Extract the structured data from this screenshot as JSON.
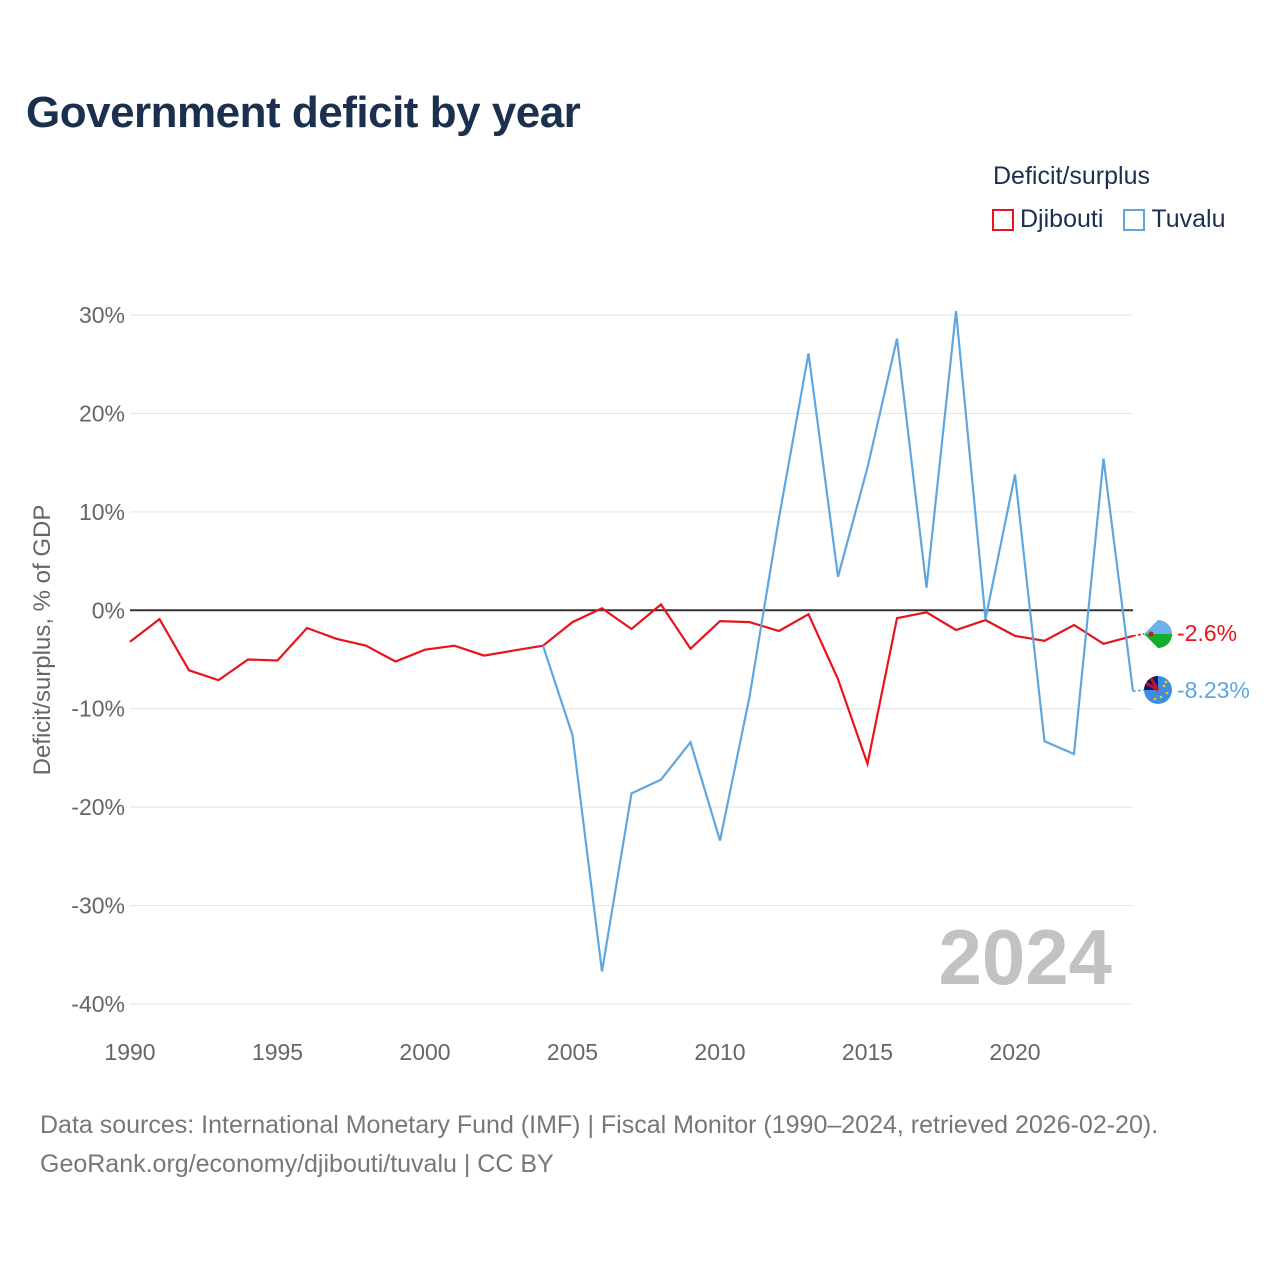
{
  "title": "Government deficit by year",
  "legend": {
    "title": "Deficit/surplus",
    "items": [
      {
        "label": "Djibouti",
        "color": "#e8131b"
      },
      {
        "label": "Tuvalu",
        "color": "#5fa6e0"
      }
    ]
  },
  "footer": {
    "line1": "Data sources: International Monetary Fund (IMF) | Fiscal Monitor (1990–2024, retrieved 2026-02-20).",
    "line2": "GeoRank.org/economy/djibouti/tuvalu | CC BY"
  },
  "chart_data": {
    "type": "line",
    "title": "Government deficit by year",
    "ylabel": "Deficit/surplus, % of GDP",
    "xlabel": "",
    "xlim": [
      1990,
      2024
    ],
    "ylim": [
      -40,
      30
    ],
    "x_ticks": [
      1990,
      1995,
      2000,
      2005,
      2010,
      2015,
      2020
    ],
    "x_tick_labels": [
      "1990",
      "1995",
      "2000",
      "2005",
      "2010",
      "2015",
      "2020"
    ],
    "y_ticks": [
      30,
      20,
      10,
      0,
      -10,
      -20,
      -30,
      -40
    ],
    "y_tick_labels": [
      "30%",
      "20%",
      "10%",
      "0%",
      "-10%",
      "-20%",
      "-30%",
      "-40%"
    ],
    "year_label": "2024",
    "series": [
      {
        "name": "Djibouti",
        "color": "#e8131b",
        "end_label": "-2.6%",
        "x": [
          1990,
          1991,
          1992,
          1993,
          1994,
          1995,
          1996,
          1997,
          1998,
          1999,
          2000,
          2001,
          2002,
          2003,
          2004,
          2005,
          2006,
          2007,
          2008,
          2009,
          2010,
          2011,
          2012,
          2013,
          2014,
          2015,
          2016,
          2017,
          2018,
          2019,
          2020,
          2021,
          2022,
          2023,
          2024
        ],
        "values": [
          -3.2,
          -0.9,
          -6.1,
          -7.1,
          -5.0,
          -5.1,
          -1.8,
          -2.9,
          -3.6,
          -5.2,
          -4.0,
          -3.6,
          -4.6,
          -4.1,
          -3.6,
          -1.2,
          0.2,
          -1.9,
          0.6,
          -3.9,
          -1.1,
          -1.2,
          -2.1,
          -0.4,
          -7.0,
          -15.6,
          -0.8,
          -0.2,
          -2.0,
          -1.0,
          -2.6,
          -3.1,
          -1.5,
          -3.4,
          -2.6
        ]
      },
      {
        "name": "Tuvalu",
        "color": "#5fa6e0",
        "end_label": "-8.23%",
        "x": [
          2004,
          2005,
          2006,
          2007,
          2008,
          2009,
          2010,
          2011,
          2012,
          2013,
          2014,
          2015,
          2016,
          2017,
          2018,
          2019,
          2020,
          2021,
          2022,
          2023,
          2024
        ],
        "values": [
          -3.6,
          -12.7,
          -36.7,
          -18.6,
          -17.2,
          -13.4,
          -23.4,
          -8.8,
          9.4,
          26.1,
          3.4,
          14.5,
          27.6,
          2.3,
          30.4,
          -0.9,
          13.8,
          -13.3,
          -14.6,
          15.4,
          -8.23
        ]
      }
    ]
  }
}
